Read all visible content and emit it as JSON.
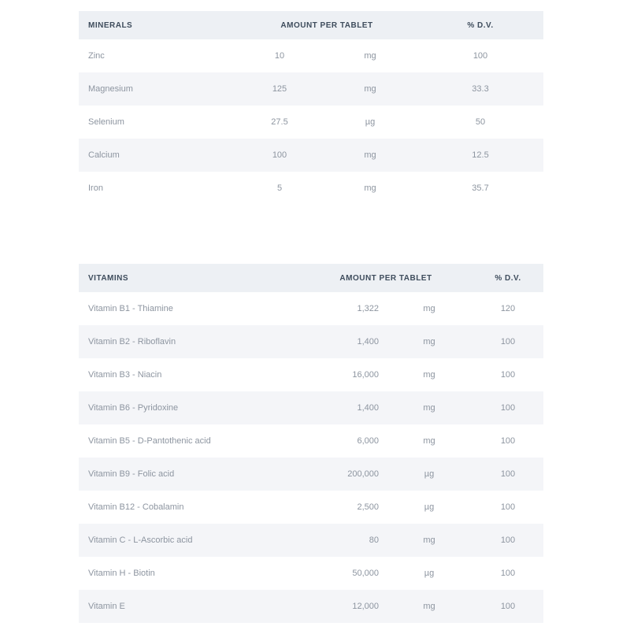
{
  "colors": {
    "header_bg": "#edf0f4",
    "header_text": "#3e4c5c",
    "row_alt_bg": "#f4f5f8",
    "row_text": "#8d95a0",
    "page_bg": "#ffffff"
  },
  "minerals_table": {
    "headers": {
      "name": "MINERALS",
      "amount": "AMOUNT PER TABLET",
      "dv": "% D.V."
    },
    "rows": [
      {
        "name": "Zinc",
        "amount": "10",
        "unit": "mg",
        "dv": "100"
      },
      {
        "name": "Magnesium",
        "amount": "125",
        "unit": "mg",
        "dv": "33.3"
      },
      {
        "name": "Selenium",
        "amount": "27.5",
        "unit": "µg",
        "dv": "50"
      },
      {
        "name": "Calcium",
        "amount": "100",
        "unit": "mg",
        "dv": "12.5"
      },
      {
        "name": "Iron",
        "amount": "5",
        "unit": "mg",
        "dv": "35.7"
      }
    ]
  },
  "vitamins_table": {
    "headers": {
      "name": "VITAMINS",
      "amount": "AMOUNT PER TABLET",
      "dv": "% D.V."
    },
    "rows": [
      {
        "name": "Vitamin B1 - Thiamine",
        "amount": "1,322",
        "unit": "mg",
        "dv": "120"
      },
      {
        "name": "Vitamin B2 - Riboflavin",
        "amount": "1,400",
        "unit": "mg",
        "dv": "100"
      },
      {
        "name": "Vitamin B3 - Niacin",
        "amount": "16,000",
        "unit": "mg",
        "dv": "100"
      },
      {
        "name": "Vitamin B6 - Pyridoxine",
        "amount": "1,400",
        "unit": "mg",
        "dv": "100"
      },
      {
        "name": "Vitamin B5 - D-Pantothenic acid",
        "amount": "6,000",
        "unit": "mg",
        "dv": "100"
      },
      {
        "name": "Vitamin B9 - Folic acid",
        "amount": "200,000",
        "unit": "µg",
        "dv": "100"
      },
      {
        "name": "Vitamin B12 - Cobalamin",
        "amount": "2,500",
        "unit": "µg",
        "dv": "100"
      },
      {
        "name": "Vitamin C - L-Ascorbic acid",
        "amount": "80",
        "unit": "mg",
        "dv": "100"
      },
      {
        "name": "Vitamin H - Biotin",
        "amount": "50,000",
        "unit": "µg",
        "dv": "100"
      },
      {
        "name": "Vitamin E",
        "amount": "12,000",
        "unit": "mg",
        "dv": "100"
      }
    ]
  }
}
